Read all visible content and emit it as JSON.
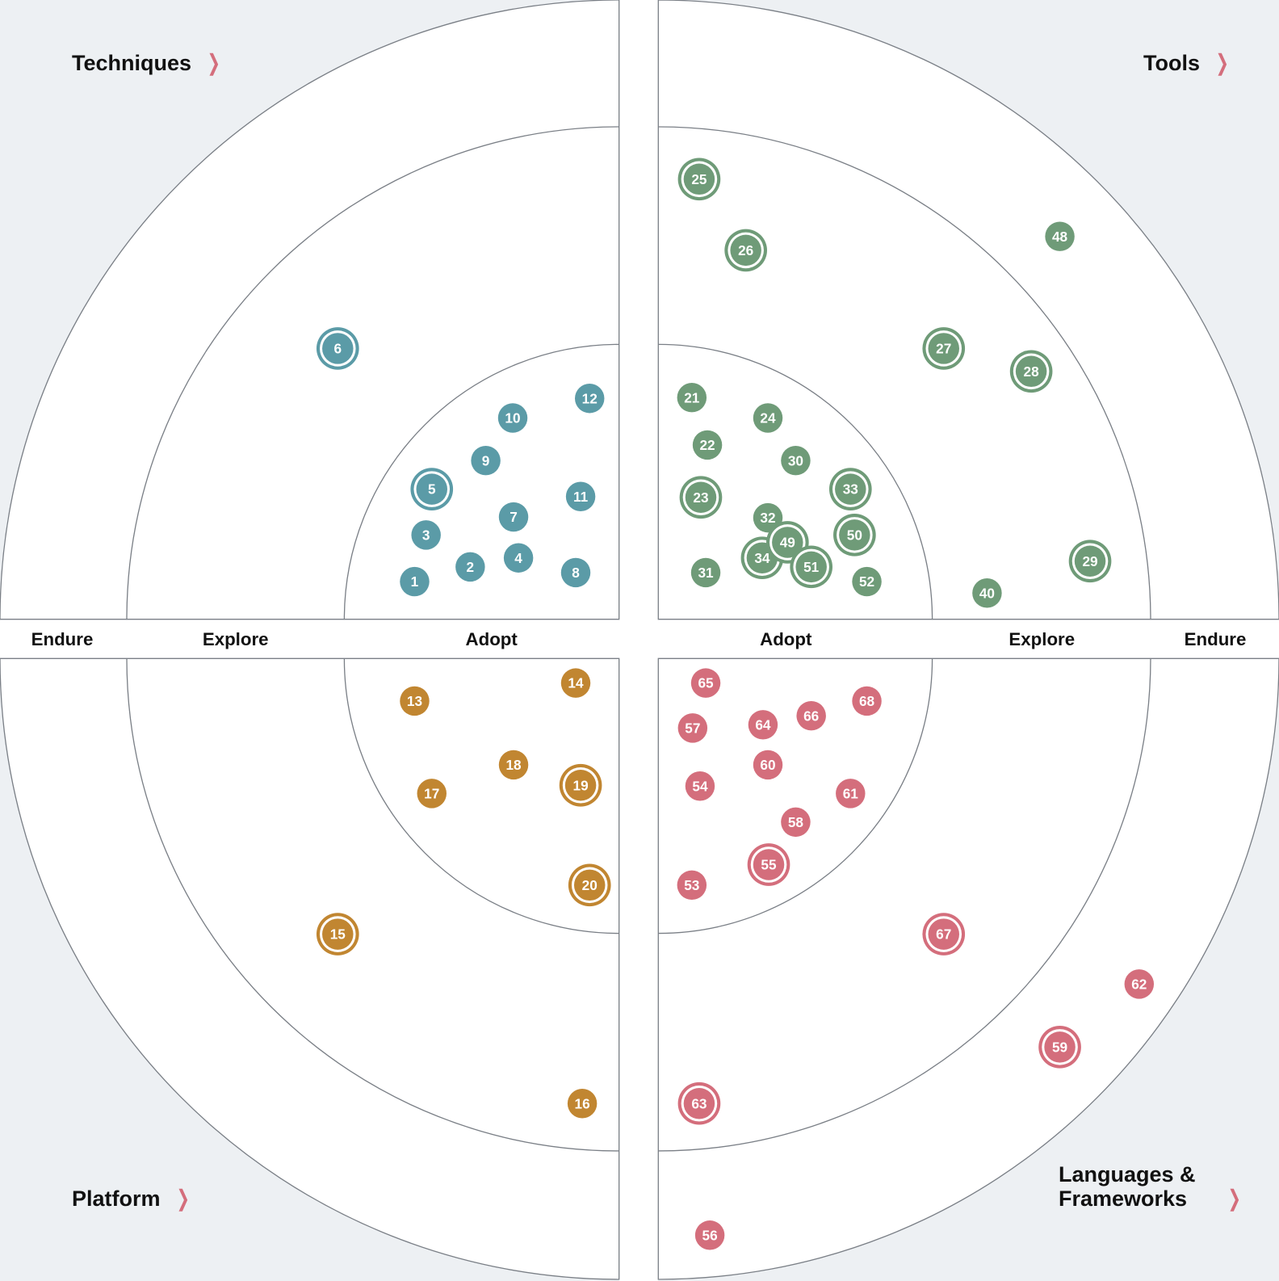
{
  "quadrants": [
    {
      "key": "techniques",
      "label": "Techniques",
      "color": "#5b9ba7"
    },
    {
      "key": "tools",
      "label": "Tools",
      "color": "#6f9b78"
    },
    {
      "key": "platform",
      "label": "Platform",
      "color": "#c18631"
    },
    {
      "key": "languages",
      "label": "Languages & Frameworks",
      "color": "#d46e7c"
    }
  ],
  "rings_left": [
    "Endure",
    "Explore",
    "Adopt"
  ],
  "rings_right": [
    "Adopt",
    "Explore",
    "Endure"
  ],
  "chevron_icon": "chevron-right-icon",
  "chevron_color": "#d46e7c",
  "blips": [
    {
      "id": "1",
      "quadrant": "techniques",
      "ring": "Adopt",
      "ringed": false
    },
    {
      "id": "2",
      "quadrant": "techniques",
      "ring": "Adopt",
      "ringed": false
    },
    {
      "id": "3",
      "quadrant": "techniques",
      "ring": "Adopt",
      "ringed": false
    },
    {
      "id": "4",
      "quadrant": "techniques",
      "ring": "Adopt",
      "ringed": false
    },
    {
      "id": "5",
      "quadrant": "techniques",
      "ring": "Adopt",
      "ringed": true
    },
    {
      "id": "6",
      "quadrant": "techniques",
      "ring": "Explore",
      "ringed": true
    },
    {
      "id": "7",
      "quadrant": "techniques",
      "ring": "Adopt",
      "ringed": false
    },
    {
      "id": "8",
      "quadrant": "techniques",
      "ring": "Adopt",
      "ringed": false
    },
    {
      "id": "9",
      "quadrant": "techniques",
      "ring": "Adopt",
      "ringed": false
    },
    {
      "id": "10",
      "quadrant": "techniques",
      "ring": "Adopt",
      "ringed": false
    },
    {
      "id": "11",
      "quadrant": "techniques",
      "ring": "Adopt",
      "ringed": false
    },
    {
      "id": "12",
      "quadrant": "techniques",
      "ring": "Adopt",
      "ringed": false
    },
    {
      "id": "13",
      "quadrant": "platform",
      "ring": "Adopt",
      "ringed": false
    },
    {
      "id": "14",
      "quadrant": "platform",
      "ring": "Adopt",
      "ringed": false
    },
    {
      "id": "15",
      "quadrant": "platform",
      "ring": "Explore",
      "ringed": true
    },
    {
      "id": "16",
      "quadrant": "platform",
      "ring": "Explore",
      "ringed": false
    },
    {
      "id": "17",
      "quadrant": "platform",
      "ring": "Adopt",
      "ringed": false
    },
    {
      "id": "18",
      "quadrant": "platform",
      "ring": "Adopt",
      "ringed": false
    },
    {
      "id": "19",
      "quadrant": "platform",
      "ring": "Adopt",
      "ringed": true
    },
    {
      "id": "20",
      "quadrant": "platform",
      "ring": "Adopt",
      "ringed": true
    },
    {
      "id": "21",
      "quadrant": "tools",
      "ring": "Adopt",
      "ringed": false
    },
    {
      "id": "22",
      "quadrant": "tools",
      "ring": "Adopt",
      "ringed": false
    },
    {
      "id": "23",
      "quadrant": "tools",
      "ring": "Adopt",
      "ringed": true
    },
    {
      "id": "24",
      "quadrant": "tools",
      "ring": "Adopt",
      "ringed": false
    },
    {
      "id": "25",
      "quadrant": "tools",
      "ring": "Explore",
      "ringed": true
    },
    {
      "id": "26",
      "quadrant": "tools",
      "ring": "Explore",
      "ringed": true
    },
    {
      "id": "27",
      "quadrant": "tools",
      "ring": "Explore",
      "ringed": true
    },
    {
      "id": "28",
      "quadrant": "tools",
      "ring": "Explore",
      "ringed": true
    },
    {
      "id": "29",
      "quadrant": "tools",
      "ring": "Explore",
      "ringed": true
    },
    {
      "id": "30",
      "quadrant": "tools",
      "ring": "Adopt",
      "ringed": false
    },
    {
      "id": "31",
      "quadrant": "tools",
      "ring": "Adopt",
      "ringed": false
    },
    {
      "id": "32",
      "quadrant": "tools",
      "ring": "Adopt",
      "ringed": false
    },
    {
      "id": "33",
      "quadrant": "tools",
      "ring": "Adopt",
      "ringed": true
    },
    {
      "id": "34",
      "quadrant": "tools",
      "ring": "Adopt",
      "ringed": true
    },
    {
      "id": "40",
      "quadrant": "tools",
      "ring": "Explore",
      "ringed": false
    },
    {
      "id": "48",
      "quadrant": "tools",
      "ring": "Endure",
      "ringed": false
    },
    {
      "id": "49",
      "quadrant": "tools",
      "ring": "Adopt",
      "ringed": true
    },
    {
      "id": "50",
      "quadrant": "tools",
      "ring": "Adopt",
      "ringed": true
    },
    {
      "id": "51",
      "quadrant": "tools",
      "ring": "Adopt",
      "ringed": true
    },
    {
      "id": "52",
      "quadrant": "tools",
      "ring": "Adopt",
      "ringed": false
    },
    {
      "id": "53",
      "quadrant": "languages",
      "ring": "Adopt",
      "ringed": false
    },
    {
      "id": "54",
      "quadrant": "languages",
      "ring": "Adopt",
      "ringed": false
    },
    {
      "id": "55",
      "quadrant": "languages",
      "ring": "Adopt",
      "ringed": true
    },
    {
      "id": "56",
      "quadrant": "languages",
      "ring": "Endure",
      "ringed": false
    },
    {
      "id": "57",
      "quadrant": "languages",
      "ring": "Adopt",
      "ringed": false
    },
    {
      "id": "58",
      "quadrant": "languages",
      "ring": "Adopt",
      "ringed": false
    },
    {
      "id": "59",
      "quadrant": "languages",
      "ring": "Endure",
      "ringed": true
    },
    {
      "id": "60",
      "quadrant": "languages",
      "ring": "Adopt",
      "ringed": false
    },
    {
      "id": "61",
      "quadrant": "languages",
      "ring": "Adopt",
      "ringed": false
    },
    {
      "id": "62",
      "quadrant": "languages",
      "ring": "Endure",
      "ringed": false
    },
    {
      "id": "63",
      "quadrant": "languages",
      "ring": "Explore",
      "ringed": true
    },
    {
      "id": "64",
      "quadrant": "languages",
      "ring": "Adopt",
      "ringed": false
    },
    {
      "id": "65",
      "quadrant": "languages",
      "ring": "Adopt",
      "ringed": false
    },
    {
      "id": "66",
      "quadrant": "languages",
      "ring": "Adopt",
      "ringed": false
    },
    {
      "id": "67",
      "quadrant": "languages",
      "ring": "Explore",
      "ringed": true
    },
    {
      "id": "68",
      "quadrant": "languages",
      "ring": "Adopt",
      "ringed": false
    }
  ]
}
